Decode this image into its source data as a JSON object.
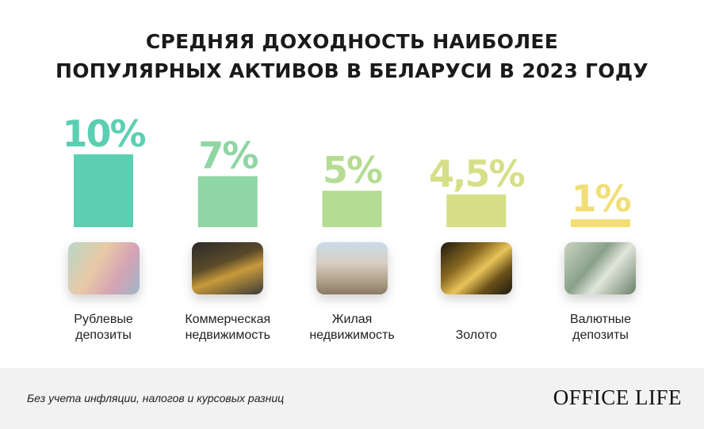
{
  "title_line1": "СРЕДНЯЯ ДОХОДНОСТЬ НАИБОЛЕЕ",
  "title_line2": "ПОПУЛЯРНЫХ АКТИВОВ В БЕЛАРУСИ В 2023 ГОДУ",
  "chart_data": {
    "type": "bar",
    "title": "Средняя доходность наиболее популярных активов в Беларуси в 2023 году",
    "categories": [
      "Рублевые депозиты",
      "Коммерческая недвижимость",
      "Жилая недвижимость",
      "Золото",
      "Валютные депозиты"
    ],
    "category_lines": [
      [
        "Рублевые",
        "депозиты"
      ],
      [
        "Коммерческая",
        "недвижимость"
      ],
      [
        "Жилая",
        "недвижимость"
      ],
      [
        "Золото",
        ""
      ],
      [
        "Валютные",
        "депозиты"
      ]
    ],
    "values": [
      10,
      7,
      5,
      4.5,
      1
    ],
    "value_labels": [
      "10%",
      "7%",
      "5%",
      "4,5%",
      "1%"
    ],
    "colors": [
      "#5ccfb3",
      "#8ed6a3",
      "#b5dc93",
      "#d6df87",
      "#f2de74"
    ],
    "ylim": [
      0,
      10
    ],
    "grid": false,
    "xlabel": "",
    "ylabel": ""
  },
  "footer": {
    "note": "Без учета инфляции, налогов и курсовых разниц",
    "logo": "OFFICE LIFE"
  }
}
